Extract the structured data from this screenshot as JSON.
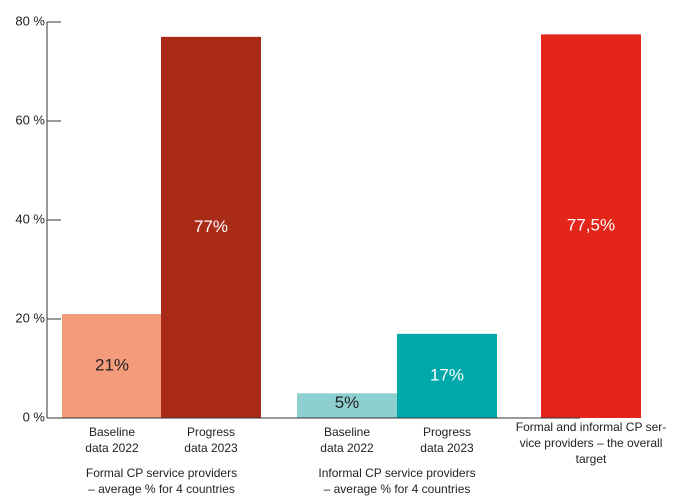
{
  "chart_data": {
    "type": "bar",
    "categories": [
      [
        "Baseline",
        "data 2022"
      ],
      [
        "Progress",
        "data 2023"
      ],
      [
        "Baseline",
        "data 2022"
      ],
      [
        "Progress",
        "data 2023"
      ],
      [
        "Formal and informal CP ser-",
        "vice providers – the overall",
        "target"
      ]
    ],
    "values": [
      21,
      77,
      5,
      17,
      77.5
    ],
    "value_labels": [
      "21%",
      "77%",
      "5%",
      "17%",
      "77,5%"
    ],
    "colors": [
      "#f39b7b",
      "#a82a17",
      "#8ecfcf",
      "#00a9a9",
      "#e32619"
    ],
    "groups": [
      [
        "Formal CP service providers",
        "– average % for 4 countries"
      ],
      [
        "Informal CP service providers",
        "– average % for 4 countries"
      ]
    ],
    "ylim": [
      0,
      80
    ],
    "yticks": [
      {
        "value": 0,
        "label": "0 %"
      },
      {
        "value": 20,
        "label": "20 %"
      },
      {
        "value": 40,
        "label": "40 %"
      },
      {
        "value": 60,
        "label": "60 %"
      },
      {
        "value": 80,
        "label": "80 %"
      }
    ]
  }
}
